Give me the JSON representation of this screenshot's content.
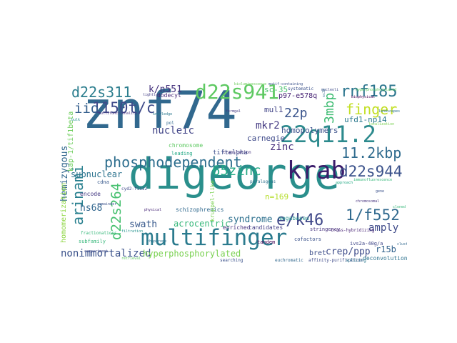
{
  "words": [
    {
      "text": "digeorge",
      "color": "#2a8f8c"
    },
    {
      "text": "znf74",
      "color": "#31688e"
    },
    {
      "text": "multifinger",
      "color": "#2b7b8e"
    },
    {
      "text": "22q11.2",
      "color": "#2c8a8d"
    },
    {
      "text": "d22s941",
      "color": "#5ec962"
    },
    {
      "text": "krab",
      "color": "#3b1c6b"
    },
    {
      "text": "phosphodependent",
      "color": "#2d6e8e"
    },
    {
      "text": "rnf185",
      "color": "#2b758e"
    },
    {
      "text": "d22s311",
      "color": "#2c7e8e"
    },
    {
      "text": "1150t/c",
      "color": "#3e4a89"
    },
    {
      "text": "finger",
      "color": "#c2df23"
    },
    {
      "text": "d22s944",
      "color": "#3b528b"
    },
    {
      "text": "11.2kbp",
      "color": "#2f6b8e"
    },
    {
      "text": "e/k46",
      "color": "#3f4788"
    },
    {
      "text": "1/f552",
      "color": "#30698e"
    },
    {
      "text": "arinami",
      "color": "#277f8e"
    },
    {
      "text": "d22s264",
      "color": "#46c06f"
    },
    {
      "text": "65zinc",
      "color": "#22a884"
    },
    {
      "text": "22p",
      "color": "#3a548c"
    },
    {
      "text": "3mbp",
      "color": "#3fbc73"
    },
    {
      "text": "nonimmortalized",
      "color": "#3b528b"
    },
    {
      "text": "iio",
      "color": "#355f8d"
    },
    {
      "text": "k/n551",
      "color": "#46337e"
    },
    {
      "text": "hyperphosphorylated",
      "color": "#7ad151"
    },
    {
      "text": "crep/ppp",
      "color": "#3e4c8a"
    },
    {
      "text": "nucleic",
      "color": "#414487"
    },
    {
      "text": "mkr2",
      "color": "#443a83"
    },
    {
      "text": "zinc",
      "color": "#472d7b"
    },
    {
      "text": "homopolymers",
      "color": "#3b518b"
    },
    {
      "text": "subnuclear",
      "color": "#2c738e"
    },
    {
      "text": "hemizygous",
      "color": "#31678e"
    },
    {
      "text": "swath",
      "color": "#38598c"
    },
    {
      "text": "acrocentric",
      "color": "#35b779"
    },
    {
      "text": "syndrome",
      "color": "#2d708e"
    },
    {
      "text": "amply",
      "color": "#3e4a89"
    },
    {
      "text": "hs68",
      "color": "#31668e"
    },
    {
      "text": "homomerization",
      "color": "#8fd744"
    },
    {
      "text": "kap-1/tif1beta",
      "color": "#6ccd5a"
    },
    {
      "text": "ufd1-np14",
      "color": "#2a788e"
    },
    {
      "text": "carnegie",
      "color": "#3e4989"
    },
    {
      "text": "mul1",
      "color": "#414487"
    },
    {
      "text": "sc-35",
      "color": "#4ac16d"
    },
    {
      "text": "p97-e578q",
      "color": "#482475"
    },
    {
      "text": "n=169",
      "color": "#b5de2b"
    },
    {
      "text": "r15b",
      "color": "#33638d"
    },
    {
      "text": "bret",
      "color": "#3d4e8a"
    },
    {
      "text": "tiftalpha",
      "color": "#3d4d8a"
    },
    {
      "text": "chromosome",
      "color": "#5ec962"
    },
    {
      "text": "schizophrenics",
      "color": "#30698e"
    },
    {
      "text": "enriched",
      "color": "#46327e"
    },
    {
      "text": "candidates",
      "color": "#433e85"
    },
    {
      "text": "megabases",
      "color": "#21918c"
    },
    {
      "text": "kruppel-like",
      "color": "#7ad151"
    },
    {
      "text": "encode",
      "color": "#443983"
    },
    {
      "text": "subfamily",
      "color": "#35b779"
    },
    {
      "text": "dodecyl",
      "color": "#482878"
    },
    {
      "text": "deconvolution",
      "color": "#2c728e"
    },
    {
      "text": "stringency",
      "color": "#46327e"
    },
    {
      "text": "ivs2a-40g/a",
      "color": "#3f4788"
    },
    {
      "text": "cofactors",
      "color": "#3b528b"
    },
    {
      "text": "tandem",
      "color": "#440154"
    },
    {
      "text": "leading",
      "color": "#22a884"
    },
    {
      "text": "euchromatic",
      "color": "#31688e"
    },
    {
      "text": "searching",
      "color": "#3b528b"
    },
    {
      "text": "affinity-purification",
      "color": "#3e4a89"
    },
    {
      "text": "splicing",
      "color": "#2a788e"
    },
    {
      "text": "cdna",
      "color": "#38598c"
    },
    {
      "text": "translation",
      "color": "#46337e"
    },
    {
      "text": "fractionations",
      "color": "#35b779"
    },
    {
      "text": "paralogous",
      "color": "#2c728e"
    },
    {
      "text": "cross-hybridizing",
      "color": "#482475"
    },
    {
      "text": "systematic",
      "color": "#3b528b"
    },
    {
      "text": "hyperphosphorylated",
      "color": "#5ec962"
    },
    {
      "text": "pol",
      "color": "#31688e"
    },
    {
      "text": "tightly",
      "color": "#433e85"
    },
    {
      "text": "bulk",
      "color": "#21918c"
    },
    {
      "text": "compartment",
      "color": "#3e4989"
    },
    {
      "text": "multifunctionality",
      "color": "#46327e"
    },
    {
      "text": "knowledge",
      "color": "#2a788e"
    },
    {
      "text": "immunofluorescence",
      "color": "#35b779"
    },
    {
      "text": "bioluminescence",
      "color": "#6ccd5a"
    },
    {
      "text": "motif-containing",
      "color": "#3b528b"
    },
    {
      "text": "biophysical",
      "color": "#440154"
    },
    {
      "text": "landscapes",
      "color": "#2c728e"
    },
    {
      "text": "sc35",
      "color": "#31688e"
    },
    {
      "text": "localization",
      "color": "#7ad151"
    },
    {
      "text": "nucleoli",
      "color": "#3e4a89"
    },
    {
      "text": "approach",
      "color": "#22a884"
    },
    {
      "text": "chromosomal",
      "color": "#46327e"
    },
    {
      "text": "gene",
      "color": "#3b528b"
    },
    {
      "text": "cloned",
      "color": "#35b779"
    },
    {
      "text": "physical",
      "color": "#482878"
    },
    {
      "text": "chaperone",
      "color": "#2c728e"
    },
    {
      "text": "fermgal",
      "color": "#443983"
    },
    {
      "text": "retrieval",
      "color": "#5ec962"
    },
    {
      "text": "clustering",
      "color": "#31688e"
    },
    {
      "text": "cyd2-fiis2",
      "color": "#3e4989"
    },
    {
      "text": "filtration",
      "color": "#21918c"
    },
    {
      "text": "remainder",
      "color": "#3b528b"
    }
  ]
}
